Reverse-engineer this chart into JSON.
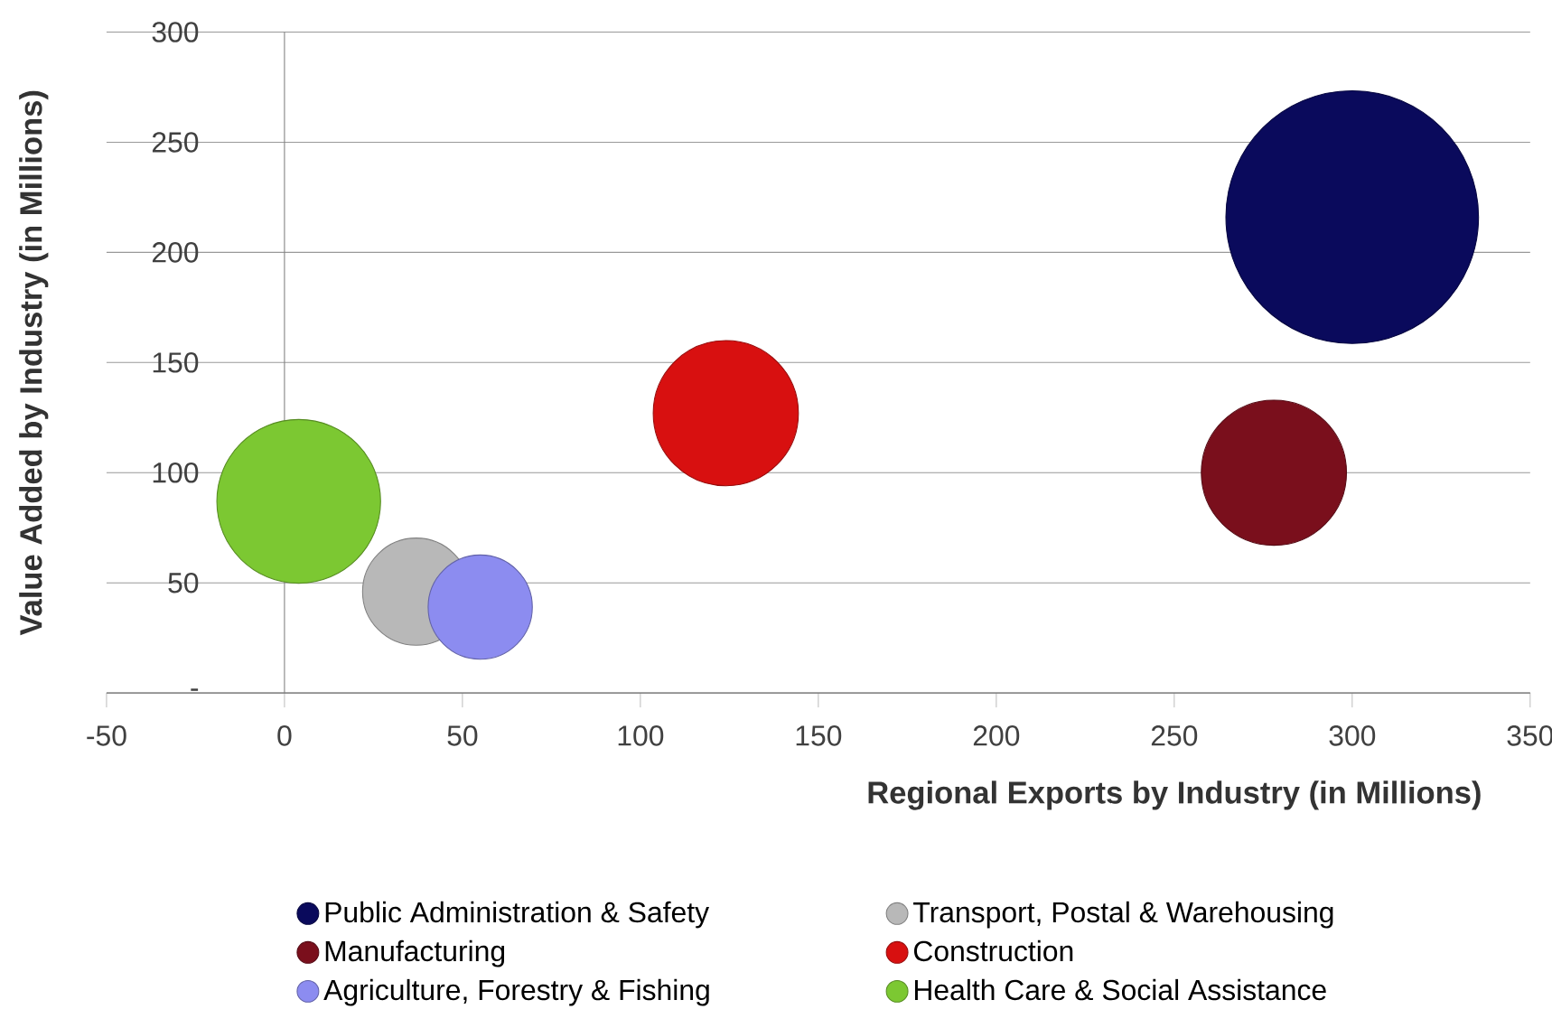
{
  "chart_data": {
    "type": "bubble",
    "xlabel": "Regional Exports by Industry (in Millions)",
    "ylabel": "Value Added by Industry  (in Millions)",
    "xlim": [
      -50,
      350
    ],
    "xticks": [
      -50,
      0,
      50,
      100,
      150,
      200,
      250,
      300,
      350
    ],
    "ylim": [
      0,
      300
    ],
    "yticks": [
      {
        "value": 0,
        "label": "-"
      },
      50,
      100,
      150,
      200,
      250,
      300
    ],
    "grid": "y",
    "legend": "bottom",
    "series": [
      {
        "name": "Public Administration &  Safety",
        "color": "#0a0a5c",
        "x": [
          300
        ],
        "values": [
          216
        ],
        "sizes": [
          1
        ]
      },
      {
        "name": "Transport, Postal & Warehousing",
        "color": "#b8b8b8",
        "x": [
          37
        ],
        "values": [
          46
        ],
        "sizes": [
          0.18
        ]
      },
      {
        "name": "Manufacturing",
        "color": "#7a0f1c",
        "x": [
          278
        ],
        "values": [
          100
        ],
        "sizes": [
          0.33
        ]
      },
      {
        "name": "Construction",
        "color": "#d81010",
        "x": [
          124
        ],
        "values": [
          127
        ],
        "sizes": [
          0.33
        ]
      },
      {
        "name": "Agriculture, Forestry & Fishing",
        "color": "#8c8cf0",
        "x": [
          55
        ],
        "values": [
          39
        ],
        "sizes": [
          0.17
        ]
      },
      {
        "name": "Health Care & Social Assistance",
        "color": "#7cc832",
        "x": [
          4
        ],
        "values": [
          87
        ],
        "sizes": [
          0.42
        ]
      }
    ]
  }
}
